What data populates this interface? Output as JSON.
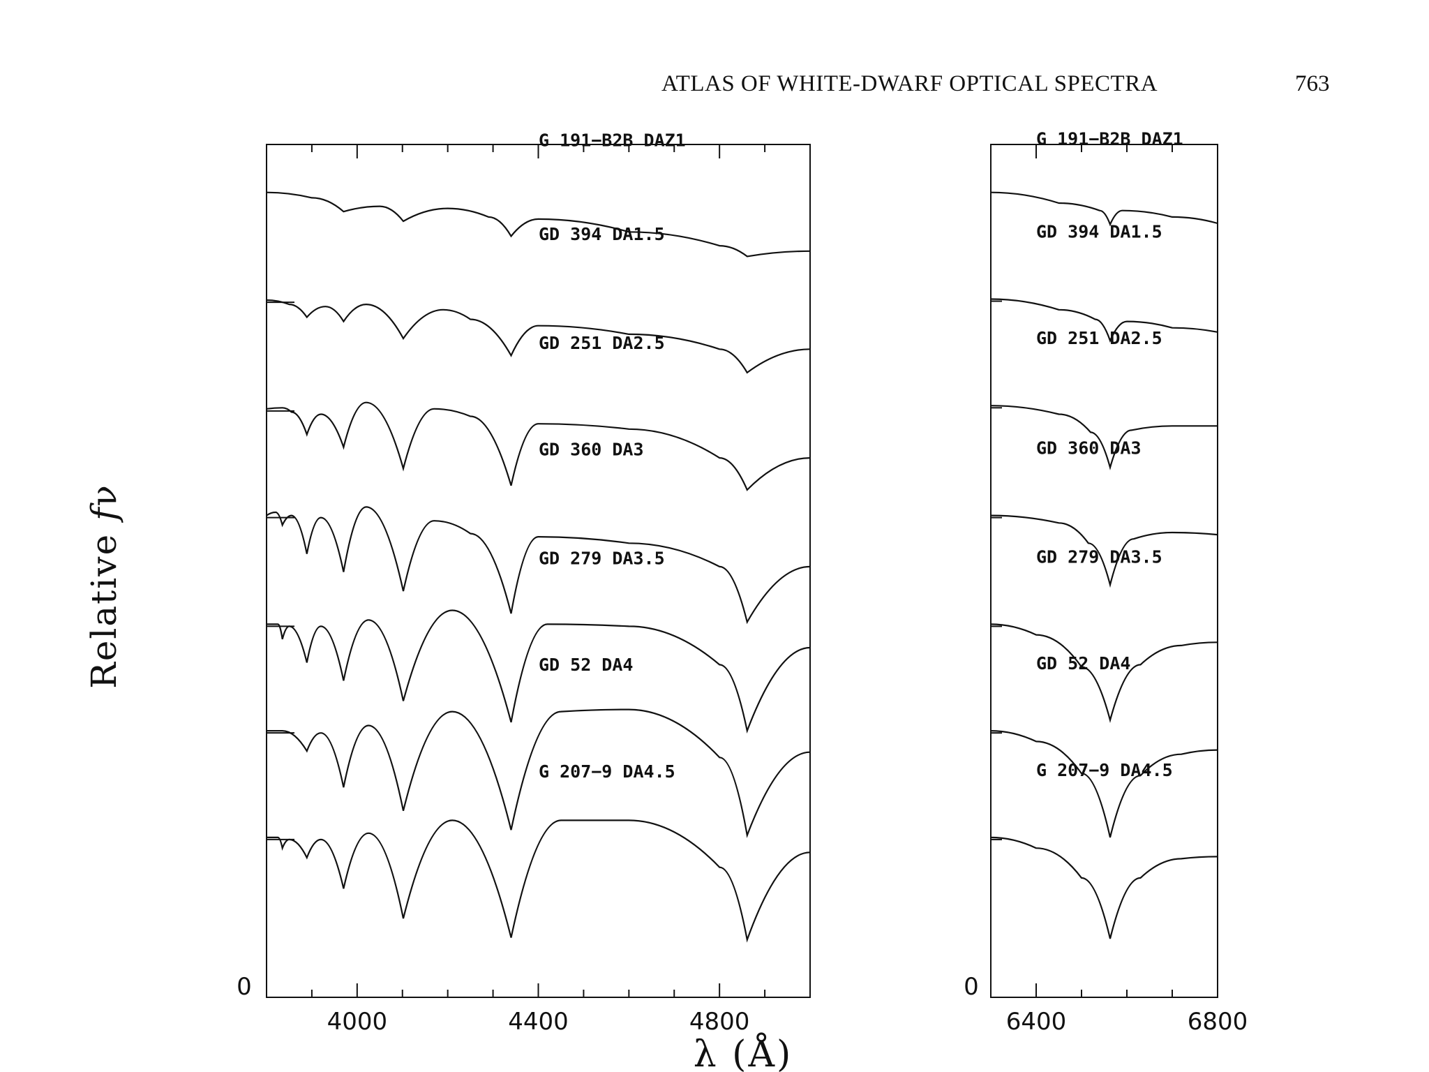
{
  "header": {
    "running_title": "ATLAS OF WHITE-DWARF OPTICAL SPECTRA",
    "page_number": "763"
  },
  "chart_data": [
    {
      "panel": "left",
      "type": "line",
      "xlabel": "λ (Å)",
      "ylabel": "Relative 𝑓ν",
      "xlim": [
        3800,
        5000
      ],
      "xticks": [
        4000,
        4400,
        4800
      ],
      "yzero_label": "0",
      "series": [
        {
          "name": "G 191−B2B DAZ1",
          "x": [
            3800,
            3900,
            3970,
            4050,
            4102,
            4200,
            4290,
            4340,
            4400,
            4600,
            4800,
            4861,
            5000
          ],
          "y": [
            7.55,
            7.5,
            7.37,
            7.42,
            7.28,
            7.4,
            7.32,
            7.14,
            7.3,
            7.18,
            7.05,
            6.95,
            7.0
          ]
        },
        {
          "name": "GD 394 DA1.5",
          "x": [
            3800,
            3850,
            3889,
            3930,
            3970,
            4020,
            4102,
            4190,
            4250,
            4340,
            4400,
            4600,
            4800,
            4861,
            5000
          ],
          "y": [
            6.54,
            6.5,
            6.38,
            6.48,
            6.34,
            6.5,
            6.18,
            6.45,
            6.36,
            6.02,
            6.3,
            6.22,
            6.08,
            5.86,
            6.08
          ]
        },
        {
          "name": "GD 251 DA2.5",
          "x": [
            3800,
            3835,
            3855,
            3889,
            3920,
            3970,
            4020,
            4102,
            4170,
            4250,
            4340,
            4400,
            4600,
            4800,
            4861,
            5000
          ],
          "y": [
            5.52,
            5.53,
            5.49,
            5.28,
            5.47,
            5.16,
            5.58,
            4.96,
            5.52,
            5.45,
            4.8,
            5.38,
            5.33,
            5.06,
            4.76,
            5.06
          ]
        },
        {
          "name": "GD 360 DA3",
          "x": [
            3800,
            3820,
            3835,
            3855,
            3889,
            3920,
            3970,
            4020,
            4102,
            4170,
            4250,
            4340,
            4400,
            4600,
            4800,
            4861,
            5000
          ],
          "y": [
            4.52,
            4.55,
            4.43,
            4.52,
            4.16,
            4.5,
            3.99,
            4.6,
            3.81,
            4.47,
            4.35,
            3.6,
            4.32,
            4.26,
            4.04,
            3.52,
            4.04
          ]
        },
        {
          "name": "GD 279 DA3.5",
          "x": [
            3800,
            3825,
            3835,
            3850,
            3889,
            3920,
            3970,
            4025,
            4102,
            4210,
            4340,
            4420,
            4600,
            4800,
            4861,
            5000
          ],
          "y": [
            3.5,
            3.5,
            3.36,
            3.48,
            3.14,
            3.48,
            2.97,
            3.54,
            2.78,
            3.63,
            2.58,
            3.5,
            3.48,
            3.12,
            2.5,
            3.28
          ]
        },
        {
          "name": "GD 52 DA4",
          "x": [
            3800,
            3835,
            3889,
            3920,
            3970,
            4025,
            4102,
            4210,
            4340,
            4450,
            4600,
            4800,
            4861,
            5000
          ],
          "y": [
            2.5,
            2.5,
            2.31,
            2.48,
            1.97,
            2.55,
            1.75,
            2.68,
            1.57,
            2.68,
            2.7,
            2.25,
            1.52,
            2.3
          ]
        },
        {
          "name": "G 207−9 DA4.5",
          "x": [
            3800,
            3825,
            3835,
            3850,
            3889,
            3920,
            3970,
            4025,
            4102,
            4210,
            4340,
            4450,
            4600,
            4800,
            4861,
            5000
          ],
          "y": [
            1.5,
            1.5,
            1.4,
            1.48,
            1.31,
            1.48,
            1.02,
            1.54,
            0.74,
            1.66,
            0.56,
            1.66,
            1.66,
            1.22,
            0.54,
            1.36
          ]
        }
      ]
    },
    {
      "panel": "right",
      "type": "line",
      "xlabel": "",
      "xlim": [
        6300,
        6800
      ],
      "xticks": [
        6400,
        6800
      ],
      "yzero_label": "0",
      "series": [
        {
          "name": "G 191−B2B DAZ1",
          "x": [
            6300,
            6450,
            6540,
            6563,
            6590,
            6700,
            6800
          ],
          "y": [
            7.55,
            7.45,
            7.38,
            7.25,
            7.38,
            7.32,
            7.26
          ]
        },
        {
          "name": "GD 394 DA1.5",
          "x": [
            6300,
            6450,
            6530,
            6563,
            6600,
            6700,
            6800
          ],
          "y": [
            6.55,
            6.45,
            6.36,
            6.16,
            6.34,
            6.28,
            6.24
          ]
        },
        {
          "name": "GD 251 DA2.5",
          "x": [
            6300,
            6450,
            6520,
            6563,
            6610,
            6700,
            6800
          ],
          "y": [
            5.55,
            5.47,
            5.3,
            4.97,
            5.32,
            5.36,
            5.36
          ]
        },
        {
          "name": "GD 360 DA3",
          "x": [
            6300,
            6450,
            6515,
            6563,
            6615,
            6700,
            6800
          ],
          "y": [
            4.52,
            4.45,
            4.26,
            3.87,
            4.3,
            4.36,
            4.34
          ]
        },
        {
          "name": "GD 279 DA3.5",
          "x": [
            6300,
            6400,
            6500,
            6563,
            6630,
            6720,
            6800
          ],
          "y": [
            3.5,
            3.4,
            3.1,
            2.6,
            3.12,
            3.3,
            3.33
          ]
        },
        {
          "name": "GD 52 DA4",
          "x": [
            6300,
            6400,
            6500,
            6563,
            6630,
            6720,
            6800
          ],
          "y": [
            2.5,
            2.4,
            2.1,
            1.5,
            2.08,
            2.28,
            2.32
          ]
        },
        {
          "name": "G 207−9 DA4.5",
          "x": [
            6300,
            6400,
            6500,
            6563,
            6630,
            6720,
            6800
          ],
          "y": [
            1.5,
            1.4,
            1.12,
            0.55,
            1.12,
            1.3,
            1.32
          ]
        }
      ]
    }
  ]
}
